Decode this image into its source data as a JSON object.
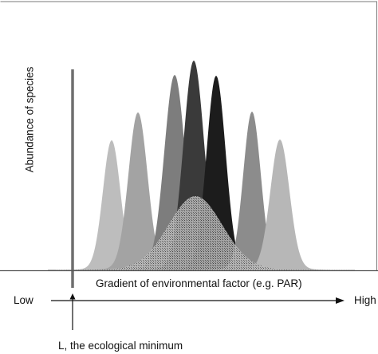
{
  "y_axis_label": "Abundance of species",
  "x_axis_label": "Gradient of environmental factor (e.g. PAR)",
  "gradient_low_label": "Low",
  "gradient_high_label": "High",
  "ecological_minimum_label": "L, the ecological minimum",
  "colors": {
    "frame": "#7a7a7a",
    "minimum_line": "#6e6e6e",
    "axis": "#111111",
    "curve_fills": [
      "#bdbdbd",
      "#a3a3a3",
      "#7d7d7d",
      "#3a3a3a",
      "#1c1c1c",
      "#8c8c8c",
      "#b7b7b7"
    ],
    "broad_curve_fill": "hatched-dark"
  }
}
